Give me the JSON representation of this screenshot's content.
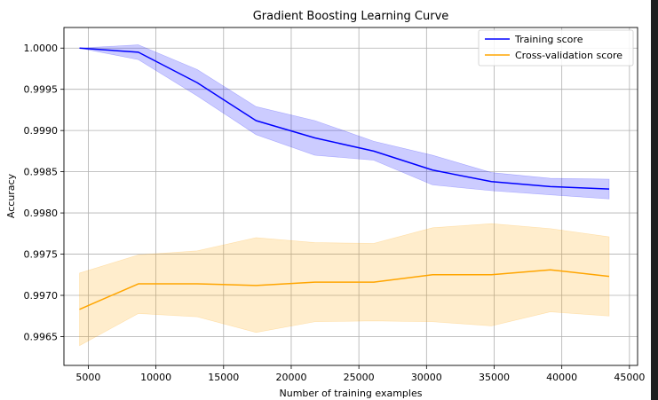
{
  "chart_data": {
    "type": "line",
    "title": "Gradient Boosting Learning Curve",
    "xlabel": "Number of training examples",
    "ylabel": "Accuracy",
    "xlim": [
      3200,
      45600
    ],
    "ylim": [
      0.99615,
      1.00025
    ],
    "xticks": [
      5000,
      10000,
      15000,
      20000,
      25000,
      30000,
      35000,
      40000,
      45000
    ],
    "xtick_labels": [
      "5000",
      "10000",
      "15000",
      "20000",
      "25000",
      "30000",
      "35000",
      "40000",
      "45000"
    ],
    "yticks": [
      0.9965,
      0.997,
      0.9975,
      0.998,
      0.9985,
      0.999,
      0.9995,
      1.0
    ],
    "ytick_labels": [
      "0.9965",
      "0.9970",
      "0.9975",
      "0.9980",
      "0.9985",
      "0.9990",
      "0.9995",
      "1.0000"
    ],
    "grid": true,
    "legend_position": "top-right",
    "x": [
      4350,
      8700,
      13050,
      17400,
      21750,
      26100,
      30450,
      34800,
      39150,
      43500
    ],
    "series": [
      {
        "name": "Training score",
        "color": "#0000ff",
        "band_color": "#0000ff",
        "values": [
          1.0,
          0.99995,
          0.99958,
          0.99912,
          0.99891,
          0.99875,
          0.99852,
          0.99838,
          0.99832,
          0.99829
        ],
        "lower": [
          1.0,
          0.99986,
          0.99942,
          0.99895,
          0.9987,
          0.99864,
          0.99834,
          0.99827,
          0.99822,
          0.99817
        ],
        "upper": [
          1.0,
          1.00004,
          0.99974,
          0.99929,
          0.99912,
          0.99887,
          0.9987,
          0.99849,
          0.99842,
          0.99841
        ]
      },
      {
        "name": "Cross-validation score",
        "color": "#ffa500",
        "band_color": "#ffa500",
        "values": [
          0.99683,
          0.99714,
          0.99714,
          0.99712,
          0.99716,
          0.99716,
          0.99725,
          0.99725,
          0.99731,
          0.99723
        ],
        "lower": [
          0.99639,
          0.99678,
          0.99674,
          0.99655,
          0.99668,
          0.99669,
          0.99668,
          0.99663,
          0.9968,
          0.99675
        ],
        "upper": [
          0.99727,
          0.99749,
          0.99754,
          0.9977,
          0.99764,
          0.99763,
          0.99782,
          0.99787,
          0.99781,
          0.99771
        ]
      }
    ]
  }
}
